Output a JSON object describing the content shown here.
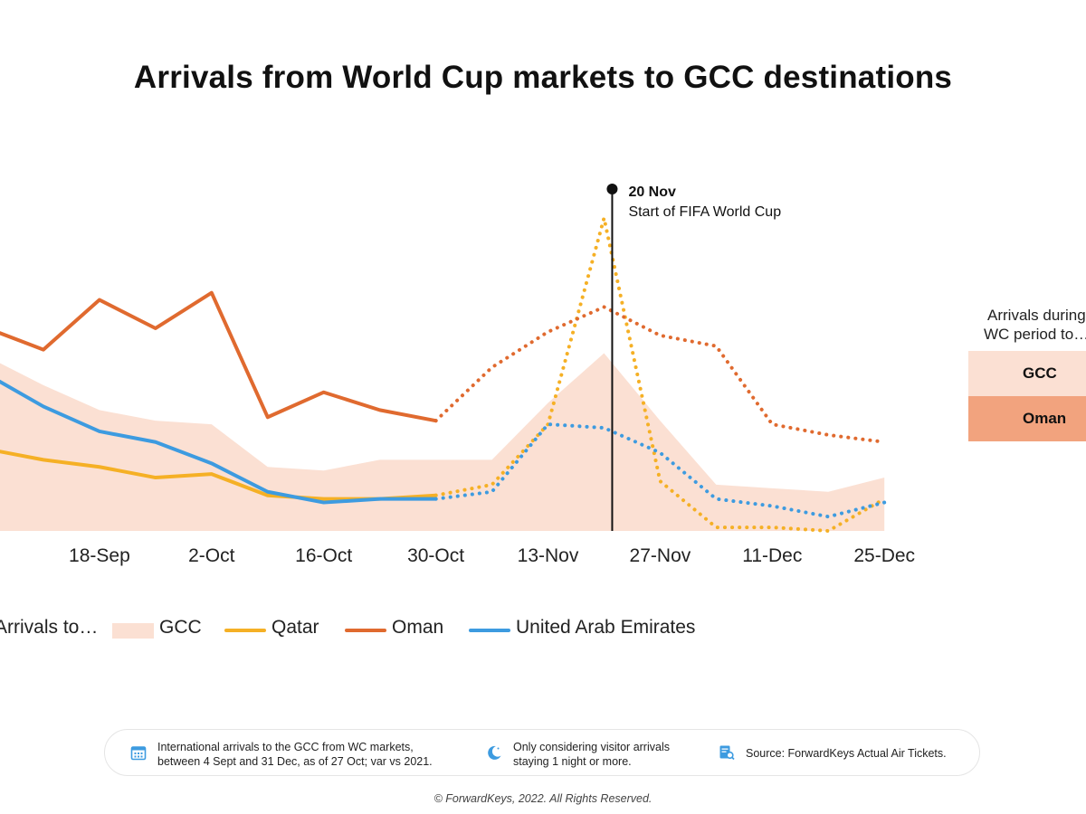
{
  "title": "Arrivals from World Cup markets to GCC destinations",
  "chart_data": {
    "type": "line",
    "x_tick_labels": [
      "ep",
      "18-Sep",
      "2-Oct",
      "16-Oct",
      "30-Oct",
      "13-Nov",
      "27-Nov",
      "11-Dec",
      "25-Dec"
    ],
    "x_points": [
      "4-Sep",
      "11-Sep",
      "18-Sep",
      "25-Sep",
      "2-Oct",
      "9-Oct",
      "16-Oct",
      "23-Oct",
      "30-Oct",
      "6-Nov",
      "13-Nov",
      "20-Nov",
      "27-Nov",
      "4-Dec",
      "11-Dec",
      "18-Dec",
      "25-Dec"
    ],
    "actual_through": "30-Oct",
    "y_axis_shown": false,
    "ylim": [
      0,
      100
    ],
    "series": [
      {
        "name": "GCC",
        "style": "area",
        "color": "#fbe0d3",
        "values": [
          49,
          41,
          34,
          31,
          30,
          18,
          17,
          20,
          20,
          20,
          36,
          50,
          31,
          13,
          12,
          11,
          15
        ]
      },
      {
        "name": "Qatar",
        "style": "line",
        "color": "#f5b025",
        "values": [
          23,
          20,
          18,
          15,
          16,
          10,
          9,
          9,
          10,
          13,
          30,
          88,
          14,
          1,
          1,
          0,
          9
        ]
      },
      {
        "name": "Oman",
        "style": "line",
        "color": "#e06a2f",
        "values": [
          57,
          51,
          65,
          57,
          67,
          32,
          39,
          34,
          31,
          46,
          56,
          63,
          55,
          52,
          30,
          27,
          25
        ]
      },
      {
        "name": "United Arab Emirates",
        "style": "line",
        "color": "#3d9be0",
        "values": [
          44,
          35,
          28,
          25,
          19,
          11,
          8,
          9,
          9,
          11,
          30,
          29,
          22,
          9,
          7,
          4,
          8
        ]
      }
    ],
    "annotation": {
      "date": "20 Nov",
      "text": "Start of FIFA World Cup"
    }
  },
  "legend": {
    "prefix": "Arrivals to…",
    "items": [
      {
        "label": "GCC",
        "color": "#fbe0d3",
        "kind": "area"
      },
      {
        "label": "Qatar",
        "color": "#f5b025",
        "kind": "line"
      },
      {
        "label": "Oman",
        "color": "#e06a2f",
        "kind": "line"
      },
      {
        "label": "United Arab Emirates",
        "color": "#3d9be0",
        "kind": "line"
      }
    ]
  },
  "side_table": {
    "title_line1": "Arrivals during",
    "title_line2": "WC period to…",
    "rows": [
      {
        "label": "GCC",
        "color": "#fbe0d3"
      },
      {
        "label": "Oman",
        "color": "#f2a37e"
      }
    ]
  },
  "footer": {
    "items": [
      {
        "icon": "calendar-icon",
        "line1": "International arrivals to the GCC from WC markets,",
        "line2": "between 4 Sept and 31 Dec, as of 27 Oct; var vs 2021."
      },
      {
        "icon": "moon-icon",
        "line1": "Only considering visitor arrivals",
        "line2": "staying 1 night or more."
      },
      {
        "icon": "ticket-search-icon",
        "line1": "Source: ForwardKeys Actual Air Tickets.",
        "line2": ""
      }
    ],
    "copyright": "© ForwardKeys, 2022. All Rights Reserved."
  },
  "colors": {
    "accent_icon": "#3d9be0",
    "text": "#111111"
  }
}
